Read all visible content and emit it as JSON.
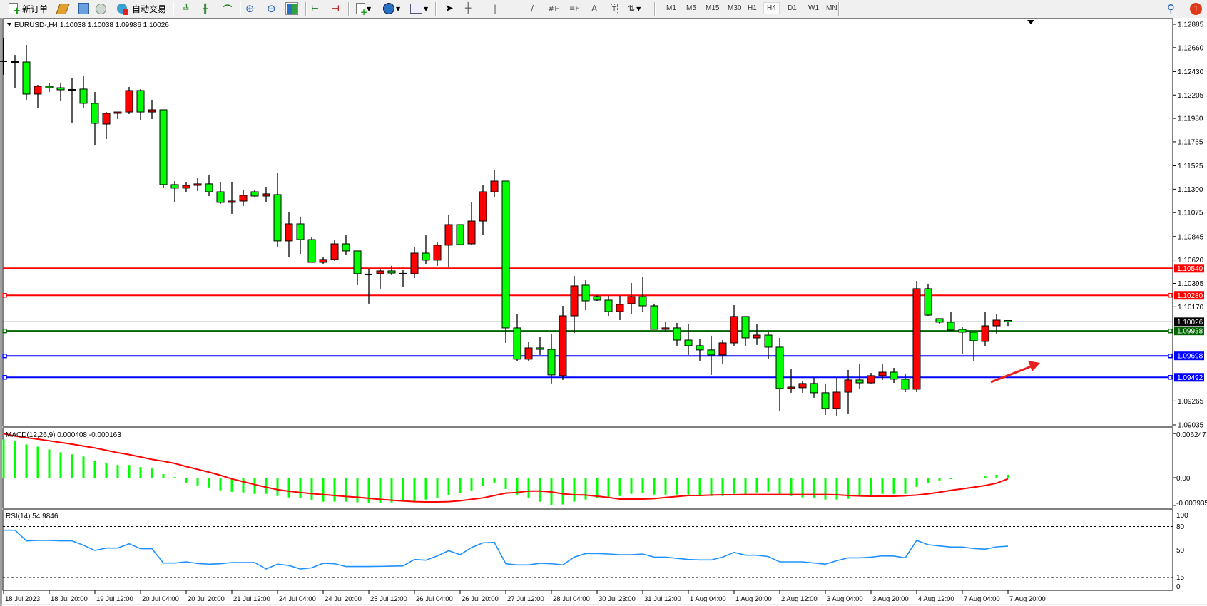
{
  "toolbar": {
    "new_order_label": "新订单",
    "auto_trading_label": "自动交易",
    "timeframes": [
      "M1",
      "M5",
      "M15",
      "M30",
      "H1",
      "H4",
      "D1",
      "W1",
      "MN"
    ],
    "active_timeframe": "H4",
    "notification_count": "1"
  },
  "chart": {
    "title": "EURUSD-,H4  1.10038 1.10038 1.09986 1.10026",
    "price_ticks": [
      1.12885,
      1.1266,
      1.1243,
      1.12205,
      1.1198,
      1.11755,
      1.11525,
      1.113,
      1.11075,
      1.10845,
      1.1062,
      1.10395,
      1.1017,
      1.09265,
      1.09035
    ],
    "price_tick_labels": [
      "1.12885",
      "1.12660",
      "1.12430",
      "1.12205",
      "1.11980",
      "1.11755",
      "1.11525",
      "1.11300",
      "1.11075",
      "1.10845",
      "1.10620",
      "1.10395",
      "1.10170",
      "1.09265",
      "1.09035"
    ],
    "levels": [
      {
        "price": 1.1054,
        "label": "1.10540",
        "color": "#ff0000",
        "markers": false
      },
      {
        "price": 1.1028,
        "label": "1.10280",
        "color": "#ff0000",
        "markers": true
      },
      {
        "price": 1.10026,
        "label": "1.10026",
        "color": "#000000",
        "markers": false,
        "current": true
      },
      {
        "price": 1.09938,
        "label": "1.09938",
        "color": "#006400",
        "markers": true
      },
      {
        "price": 1.09698,
        "label": "1.09698",
        "color": "#0000ff",
        "markers": true
      },
      {
        "price": 1.09492,
        "label": "1.09492",
        "color": "#0000ff",
        "markers": true
      }
    ],
    "colors": {
      "bull": "#ff0000",
      "bear": "#00ff00",
      "macd_hist": "#00ff00",
      "macd_signal": "#ff0000",
      "rsi": "#1e90ff",
      "arrow": "#e82020"
    },
    "time_labels": [
      "18 Jul 2023",
      "18 Jul 20:00",
      "19 Jul 12:00",
      "20 Jul 04:00",
      "20 Jul 20:00",
      "21 Jul 12:00",
      "24 Jul 04:00",
      "24 Jul 20:00",
      "25 Jul 12:00",
      "26 Jul 04:00",
      "26 Jul 20:00",
      "27 Jul 12:00",
      "28 Jul 04:00",
      "30 Jul 23:00",
      "31 Jul 12:00",
      "1 Aug 04:00",
      "1 Aug 20:00",
      "2 Aug 12:00",
      "3 Aug 04:00",
      "3 Aug 20:00",
      "4 Aug 12:00",
      "7 Aug 04:00",
      "7 Aug 20:00"
    ],
    "annotation": "red-arrow-up-right"
  },
  "macd": {
    "label": "MACD(12,26,9) 0.000408 -0.000163",
    "axis_labels": [
      "0.006247",
      "0.00",
      "-0.003935"
    ],
    "axis_values": [
      0.006247,
      0,
      -0.003935
    ]
  },
  "rsi": {
    "label": "RSI(14) 54.9846",
    "axis_labels": [
      "100",
      "80",
      "50",
      "15",
      "0"
    ],
    "axis_values": [
      100,
      80,
      50,
      15,
      0
    ],
    "dashed_levels": [
      80,
      50,
      15
    ]
  },
  "chart_data": {
    "type": "candlestick",
    "symbol": "EURUSD-",
    "timeframe": "H4",
    "ohlc_order": [
      "open",
      "high",
      "low",
      "close"
    ],
    "ylim": [
      1.09035,
      1.12885
    ],
    "candles": [
      [
        1.12529,
        1.12748,
        1.12399,
        1.12529
      ],
      [
        1.12522,
        1.1259,
        1.12269,
        1.12522
      ],
      [
        1.12522,
        1.12686,
        1.12159,
        1.12214
      ],
      [
        1.12214,
        1.12303,
        1.12077,
        1.12289
      ],
      [
        1.12289,
        1.12316,
        1.12234,
        1.12275
      ],
      [
        1.12275,
        1.12316,
        1.12145,
        1.12255
      ],
      [
        1.12255,
        1.12364,
        1.1194,
        1.12255
      ],
      [
        1.12262,
        1.12392,
        1.12084,
        1.12125
      ],
      [
        1.12125,
        1.12234,
        1.11727,
        1.11933
      ],
      [
        1.11926,
        1.12042,
        1.11782,
        1.12029
      ],
      [
        1.12029,
        1.12042,
        1.11974,
        1.12042
      ],
      [
        1.12042,
        1.12282,
        1.12022,
        1.12248
      ],
      [
        1.12248,
        1.12262,
        1.1196,
        1.12042
      ],
      [
        1.12042,
        1.12159,
        1.11974,
        1.12063
      ],
      [
        1.12063,
        1.12063,
        1.1131,
        1.11344
      ],
      [
        1.11344,
        1.11378,
        1.11173,
        1.1131
      ],
      [
        1.1131,
        1.11371,
        1.11268,
        1.11337
      ],
      [
        1.11337,
        1.11412,
        1.11282,
        1.11351
      ],
      [
        1.11351,
        1.1144,
        1.11234,
        1.11275
      ],
      [
        1.11275,
        1.11371,
        1.11159,
        1.11173
      ],
      [
        1.11173,
        1.11371,
        1.11063,
        1.11186
      ],
      [
        1.11186,
        1.11296,
        1.11138,
        1.11241
      ],
      [
        1.11275,
        1.11296,
        1.1122,
        1.11234
      ],
      [
        1.11234,
        1.11323,
        1.11179,
        1.11255
      ],
      [
        1.11248,
        1.1146,
        1.10741,
        1.10803
      ],
      [
        1.10803,
        1.11083,
        1.10645,
        1.10967
      ],
      [
        1.10967,
        1.11036,
        1.10679,
        1.10816
      ],
      [
        1.10816,
        1.10837,
        1.10597,
        1.10597
      ],
      [
        1.10597,
        1.10652,
        1.10583,
        1.10625
      ],
      [
        1.10625,
        1.10809,
        1.10611,
        1.10775
      ],
      [
        1.10775,
        1.10864,
        1.10672,
        1.10707
      ],
      [
        1.10707,
        1.10707,
        1.10378,
        1.10488
      ],
      [
        1.10481,
        1.10529,
        1.102,
        1.10481
      ],
      [
        1.10488,
        1.10535,
        1.10344,
        1.10515
      ],
      [
        1.10515,
        1.10563,
        1.10474,
        1.10494
      ],
      [
        1.10488,
        1.10522,
        1.10364,
        1.10488
      ],
      [
        1.10488,
        1.10741,
        1.10446,
        1.10686
      ],
      [
        1.10686,
        1.10857,
        1.10583,
        1.10618
      ],
      [
        1.10618,
        1.10789,
        1.10563,
        1.10762
      ],
      [
        1.10762,
        1.11056,
        1.10549,
        1.1096
      ],
      [
        1.1096,
        1.1096,
        1.10768,
        1.10768
      ],
      [
        1.10775,
        1.11173,
        1.10768,
        1.10994
      ],
      [
        1.10994,
        1.11337,
        1.10864,
        1.11275
      ],
      [
        1.11275,
        1.11488,
        1.11227,
        1.11378
      ],
      [
        1.11378,
        1.11378,
        1.09823,
        1.09967
      ],
      [
        1.09967,
        1.10097,
        1.09645,
        1.09666
      ],
      [
        1.09666,
        1.0983,
        1.09645,
        1.09775
      ],
      [
        1.09775,
        1.09878,
        1.09707,
        1.09761
      ],
      [
        1.09761,
        1.09905,
        1.09433,
        1.09515
      ],
      [
        1.09508,
        1.10179,
        1.09467,
        1.10083
      ],
      [
        1.10083,
        1.10467,
        1.09919,
        1.10371
      ],
      [
        1.10378,
        1.10426,
        1.10138,
        1.10227
      ],
      [
        1.10268,
        1.10282,
        1.10227,
        1.10234
      ],
      [
        1.10234,
        1.10275,
        1.10083,
        1.10124
      ],
      [
        1.10124,
        1.10275,
        1.10042,
        1.10193
      ],
      [
        1.102,
        1.10398,
        1.10104,
        1.10268
      ],
      [
        1.10268,
        1.10453,
        1.10124,
        1.10179
      ],
      [
        1.10179,
        1.102,
        1.09953,
        1.09953
      ],
      [
        1.09953,
        1.10022,
        1.09926,
        1.09967
      ],
      [
        1.09967,
        1.10015,
        1.09796,
        1.0985
      ],
      [
        1.0985,
        1.10001,
        1.09707,
        1.09796
      ],
      [
        1.09796,
        1.09864,
        1.09652,
        1.09755
      ],
      [
        1.09755,
        1.09892,
        1.09515,
        1.09707
      ],
      [
        1.09707,
        1.0985,
        1.09618,
        1.09823
      ],
      [
        1.09823,
        1.10186,
        1.09796,
        1.10077
      ],
      [
        1.10077,
        1.10077,
        1.09796,
        1.09871
      ],
      [
        1.09871,
        1.10008,
        1.09803,
        1.09898
      ],
      [
        1.09898,
        1.09926,
        1.09672,
        1.09782
      ],
      [
        1.09782,
        1.09871,
        1.09172,
        1.09385
      ],
      [
        1.09385,
        1.09576,
        1.09344,
        1.09398
      ],
      [
        1.09392,
        1.09453,
        1.09344,
        1.09433
      ],
      [
        1.09433,
        1.09487,
        1.09296,
        1.09344
      ],
      [
        1.09344,
        1.09433,
        1.09131,
        1.09193
      ],
      [
        1.09193,
        1.09487,
        1.09124,
        1.0935
      ],
      [
        1.0935,
        1.09563,
        1.09145,
        1.09467
      ],
      [
        1.09467,
        1.09624,
        1.09378,
        1.09439
      ],
      [
        1.09439,
        1.09535,
        1.09433,
        1.09508
      ],
      [
        1.09508,
        1.09618,
        1.09467,
        1.09542
      ],
      [
        1.09542,
        1.09583,
        1.09439,
        1.09474
      ],
      [
        1.09474,
        1.09529,
        1.0935,
        1.09378
      ],
      [
        1.09378,
        1.10419,
        1.0935,
        1.10344
      ],
      [
        1.10344,
        1.10392,
        1.10083,
        1.1009
      ],
      [
        1.10056,
        1.10056,
        1.10008,
        1.10022
      ],
      [
        1.10022,
        1.10118,
        1.09946,
        1.09946
      ],
      [
        1.09953,
        1.09974,
        1.09713,
        1.09926
      ],
      [
        1.09926,
        1.09926,
        1.09645,
        1.09844
      ],
      [
        1.09837,
        1.10118,
        1.09789,
        1.09987
      ],
      [
        1.09987,
        1.10097,
        1.09912,
        1.10042
      ],
      [
        1.10038,
        1.10038,
        1.09986,
        1.10026
      ]
    ],
    "macd_histogram": [
      0.0054,
      0.0052,
      0.0047,
      0.0044,
      0.004,
      0.0036,
      0.0033,
      0.003,
      0.0024,
      0.0021,
      0.0018,
      0.0018,
      0.0015,
      0.0013,
      0.0005,
      0.0001,
      -0.0007,
      -0.0011,
      -0.0014,
      -0.0018,
      -0.002,
      -0.0021,
      -0.0023,
      -0.0023,
      -0.0026,
      -0.0028,
      -0.0029,
      -0.0032,
      -0.0034,
      -0.0034,
      -0.0034,
      -0.0035,
      -0.0036,
      -0.0036,
      -0.0035,
      -0.0034,
      -0.0034,
      -0.0031,
      -0.0029,
      -0.0025,
      -0.0022,
      -0.0018,
      -0.0012,
      -0.0007,
      -0.0016,
      -0.0024,
      -0.0029,
      -0.0034,
      -0.0039,
      -0.0038,
      -0.0034,
      -0.0031,
      -0.0029,
      -0.0028,
      -0.0026,
      -0.0023,
      -0.0022,
      -0.0024,
      -0.0024,
      -0.0024,
      -0.0024,
      -0.0026,
      -0.0026,
      -0.0026,
      -0.0023,
      -0.0023,
      -0.0021,
      -0.002,
      -0.0023,
      -0.0026,
      -0.0028,
      -0.0029,
      -0.0031,
      -0.0031,
      -0.003,
      -0.0026,
      -0.0026,
      -0.0023,
      -0.0023,
      -0.0023,
      -0.0013,
      -0.0008,
      -0.0004,
      -0.0002,
      -0.0001,
      -0.0001,
      0.0002,
      0.0004,
      0.000408
    ],
    "macd_signal": [
      0.00623,
      0.0059,
      0.00566,
      0.00546,
      0.00522,
      0.00499,
      0.00475,
      0.00448,
      0.00421,
      0.00388,
      0.00354,
      0.00327,
      0.00293,
      0.00259,
      0.00233,
      0.00202,
      0.00158,
      0.00118,
      0.00078,
      0.00034,
      -0.00017,
      -0.00057,
      -0.00098,
      -0.00135,
      -0.00169,
      -0.00192,
      -0.00209,
      -0.00226,
      -0.00239,
      -0.00253,
      -0.00266,
      -0.00276,
      -0.00293,
      -0.00307,
      -0.0032,
      -0.0033,
      -0.0034,
      -0.00344,
      -0.00344,
      -0.0034,
      -0.00327,
      -0.00307,
      -0.00286,
      -0.00253,
      -0.00219,
      -0.00209,
      -0.00189,
      -0.00189,
      -0.00202,
      -0.00229,
      -0.00243,
      -0.00246,
      -0.00263,
      -0.0028,
      -0.00303,
      -0.00303,
      -0.00303,
      -0.00297,
      -0.0028,
      -0.00266,
      -0.00253,
      -0.00253,
      -0.00246,
      -0.00243,
      -0.00243,
      -0.00239,
      -0.00239,
      -0.00239,
      -0.00239,
      -0.00239,
      -0.00239,
      -0.00239,
      -0.00239,
      -0.00243,
      -0.00253,
      -0.00259,
      -0.00263,
      -0.00263,
      -0.00263,
      -0.00256,
      -0.00246,
      -0.00229,
      -0.00206,
      -0.00179,
      -0.00158,
      -0.00135,
      -0.00111,
      -0.00078,
      -0.000163
    ],
    "rsi": [
      75.3,
      75.3,
      61.7,
      62.3,
      62.3,
      61.7,
      61.7,
      56.2,
      49.5,
      52.6,
      52.6,
      58.0,
      51.7,
      51.7,
      33.5,
      33.5,
      35.0,
      32.9,
      32.0,
      32.6,
      34.1,
      34.1,
      34.1,
      25.9,
      32.0,
      30.4,
      25.9,
      27.4,
      33.2,
      32.6,
      29.0,
      29.0,
      29.0,
      29.2,
      29.5,
      29.8,
      38.0,
      37.1,
      42.6,
      49.2,
      44.1,
      53.2,
      59.2,
      59.8,
      32.6,
      31.1,
      31.1,
      33.2,
      32.6,
      31.1,
      41.0,
      45.6,
      45.6,
      45.0,
      44.1,
      44.1,
      45.0,
      41.0,
      41.0,
      39.5,
      38.0,
      37.4,
      37.4,
      41.0,
      47.1,
      43.5,
      43.5,
      41.7,
      35.0,
      35.0,
      35.0,
      33.5,
      32.0,
      36.5,
      40.1,
      40.1,
      41.0,
      42.6,
      42.3,
      40.1,
      62.3,
      56.8,
      55.3,
      53.8,
      53.8,
      52.0,
      51.1,
      54.1,
      54.9846
    ]
  }
}
